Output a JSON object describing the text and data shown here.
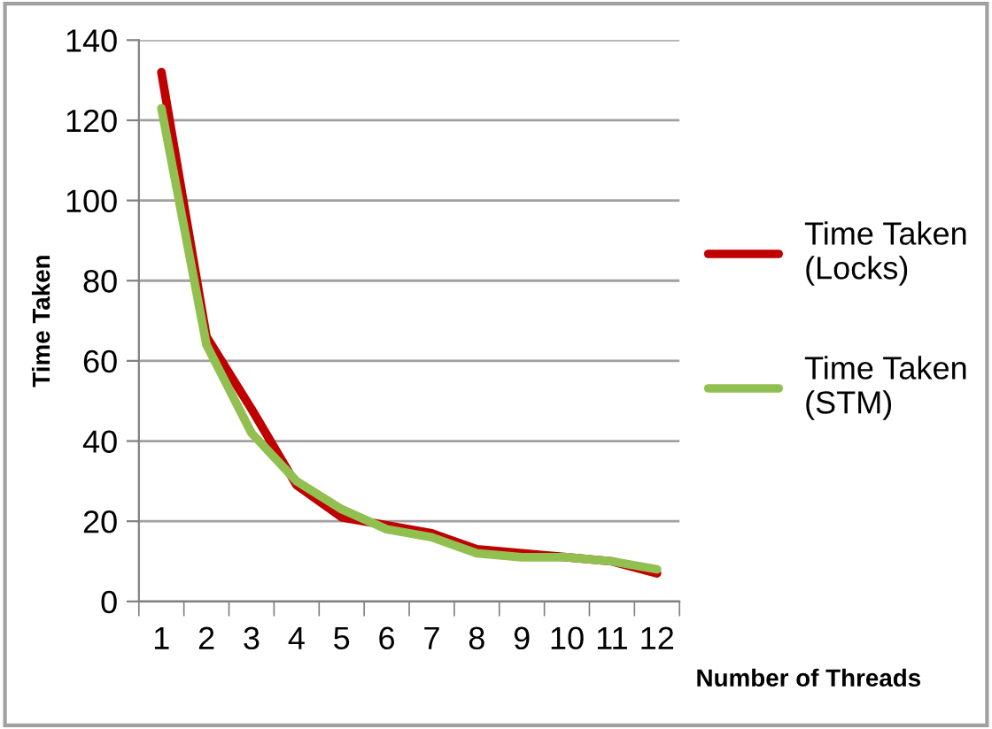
{
  "chart_data": {
    "type": "line",
    "xlabel": "Number of Threads",
    "ylabel": "Time Taken",
    "categories": [
      "1",
      "2",
      "3",
      "4",
      "5",
      "6",
      "7",
      "8",
      "9",
      "10",
      "11",
      "12"
    ],
    "series": [
      {
        "name": "Time Taken (Locks)",
        "color": "#c00000",
        "values": [
          132,
          66,
          48,
          29,
          21,
          19,
          17,
          13,
          12,
          11,
          10,
          7
        ]
      },
      {
        "name": "Time Taken (STM)",
        "color": "#92c050",
        "values": [
          123,
          64,
          42,
          30,
          23,
          18,
          16,
          12,
          11,
          11,
          10,
          8
        ]
      }
    ],
    "ylim": [
      0,
      140
    ],
    "yticks": [
      0,
      20,
      40,
      60,
      80,
      100,
      120,
      140
    ],
    "grid": "y",
    "legend": "right",
    "line_style": "solid",
    "marker": "none"
  }
}
